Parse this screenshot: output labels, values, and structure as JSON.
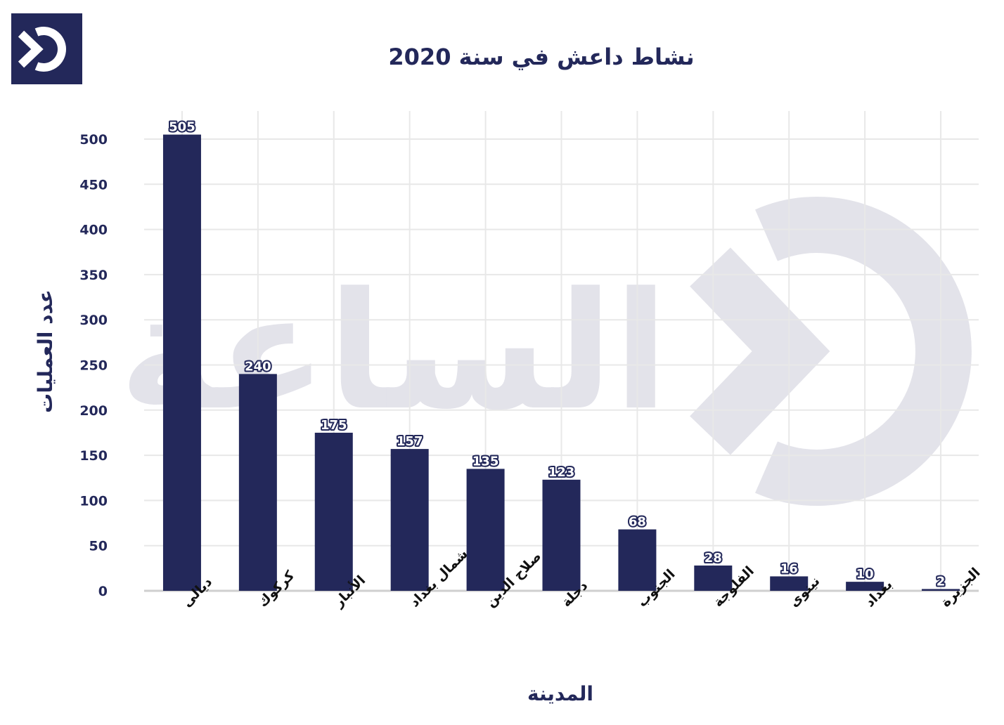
{
  "colors": {
    "bar": "#23285a",
    "grid": "#e8e8e8",
    "axis": "#cfcfcf",
    "watermark": "#e3e3ea",
    "logo_bg": "#23285a",
    "logo_fg": "#ffffff"
  },
  "logo": {
    "icon": "brand-logo-icon"
  },
  "watermark": {
    "text": "الساعة",
    "icon": "brand-watermark-icon"
  },
  "chart_data": {
    "type": "bar",
    "title": "نشاط داعش في سنة 2020",
    "xlabel": "المدينة",
    "ylabel": "عدد العمليات",
    "categories": [
      "ديالى",
      "كركوك",
      "الأنبار",
      "شمال بغداد",
      "صلاح الدين",
      "دجلة",
      "الجنوب",
      "الفلوجة",
      "نينوى",
      "بغداد",
      "الجزيرة"
    ],
    "values": [
      505,
      240,
      175,
      157,
      135,
      123,
      68,
      28,
      16,
      10,
      2
    ],
    "ylim": [
      0,
      500
    ],
    "yticks": [
      0,
      50,
      100,
      150,
      200,
      250,
      300,
      350,
      400,
      450,
      500
    ],
    "grid": true,
    "legend": "none"
  }
}
